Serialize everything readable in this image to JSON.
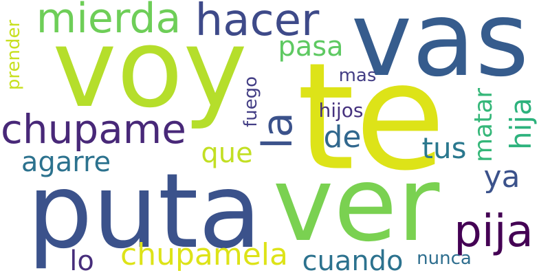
{
  "words": [
    {
      "id": "vas",
      "text": "vas",
      "color": "#365c8d"
    },
    {
      "id": "voy",
      "text": "voy",
      "color": "#b5de2b"
    },
    {
      "id": "te",
      "text": "te",
      "color": "#dde318"
    },
    {
      "id": "puta",
      "text": "puta",
      "color": "#3b528b"
    },
    {
      "id": "ver",
      "text": "ver",
      "color": "#7ad151"
    },
    {
      "id": "mierda",
      "text": "mierda",
      "color": "#6ece58"
    },
    {
      "id": "hacer",
      "text": "hacer",
      "color": "#3e4a89"
    },
    {
      "id": "chupame",
      "text": "chupame",
      "color": "#482878"
    },
    {
      "id": "pija",
      "text": "pija",
      "color": "#440154"
    },
    {
      "id": "chupamela",
      "text": "chupamela",
      "color": "#dde318"
    },
    {
      "id": "agarre",
      "text": "agarre",
      "color": "#2c728e"
    },
    {
      "id": "la",
      "text": "la",
      "color": "#3b528b"
    },
    {
      "id": "pasa",
      "text": "pasa",
      "color": "#5ec962"
    },
    {
      "id": "cuando",
      "text": "cuando",
      "color": "#2c728e"
    },
    {
      "id": "de",
      "text": "de",
      "color": "#31688e"
    },
    {
      "id": "que",
      "text": "que",
      "color": "#c2df23"
    },
    {
      "id": "tus",
      "text": "tus",
      "color": "#2a788e"
    },
    {
      "id": "matar",
      "text": "matar",
      "color": "#35b779"
    },
    {
      "id": "hija",
      "text": "hija",
      "color": "#2db27d"
    },
    {
      "id": "ya",
      "text": "ya",
      "color": "#3b528b"
    },
    {
      "id": "lo",
      "text": "lo",
      "color": "#472d7b"
    },
    {
      "id": "hijos",
      "text": "hijos",
      "color": "#46327e"
    },
    {
      "id": "fuego",
      "text": "fuego",
      "color": "#433e85"
    },
    {
      "id": "mas",
      "text": "mas",
      "color": "#433e85"
    },
    {
      "id": "nunca",
      "text": "nunca",
      "color": "#2e6e8e"
    },
    {
      "id": "prender",
      "text": "prender",
      "color": "#c8e020"
    }
  ]
}
